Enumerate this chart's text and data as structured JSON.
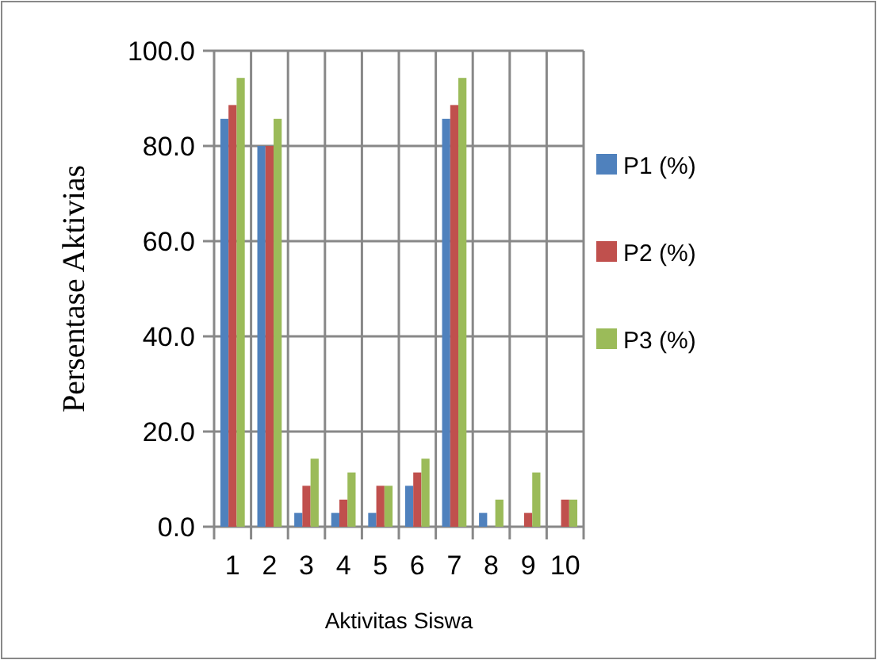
{
  "chart_data": {
    "type": "bar",
    "xlabel": "Aktivitas Siswa",
    "ylabel": "Persentase Aktivias",
    "categories": [
      "1",
      "2",
      "3",
      "4",
      "5",
      "6",
      "7",
      "8",
      "9",
      "10"
    ],
    "series": [
      {
        "name": "P1 (%)",
        "color": "#4f81bd",
        "values": [
          85.7,
          80.0,
          2.9,
          2.9,
          2.9,
          8.6,
          85.7,
          2.9,
          0,
          0
        ]
      },
      {
        "name": "P2 (%)",
        "color": "#c0504d",
        "values": [
          88.6,
          80.0,
          8.6,
          5.7,
          8.6,
          11.4,
          88.6,
          0,
          2.9,
          5.7
        ]
      },
      {
        "name": "P3 (%)",
        "color": "#9bbb59",
        "values": [
          94.3,
          85.7,
          14.3,
          11.4,
          8.6,
          14.3,
          94.3,
          5.7,
          11.4,
          5.7
        ]
      }
    ],
    "ylim": [
      0,
      100
    ],
    "yticks": [
      {
        "value": 0,
        "label": "0.0"
      },
      {
        "value": 20,
        "label": "20.0"
      },
      {
        "value": 40,
        "label": "40.0"
      },
      {
        "value": 60,
        "label": "60.0"
      },
      {
        "value": 80,
        "label": "80.0"
      },
      {
        "value": 100,
        "label": "100.0"
      }
    ],
    "grid": true,
    "legend": "right"
  }
}
